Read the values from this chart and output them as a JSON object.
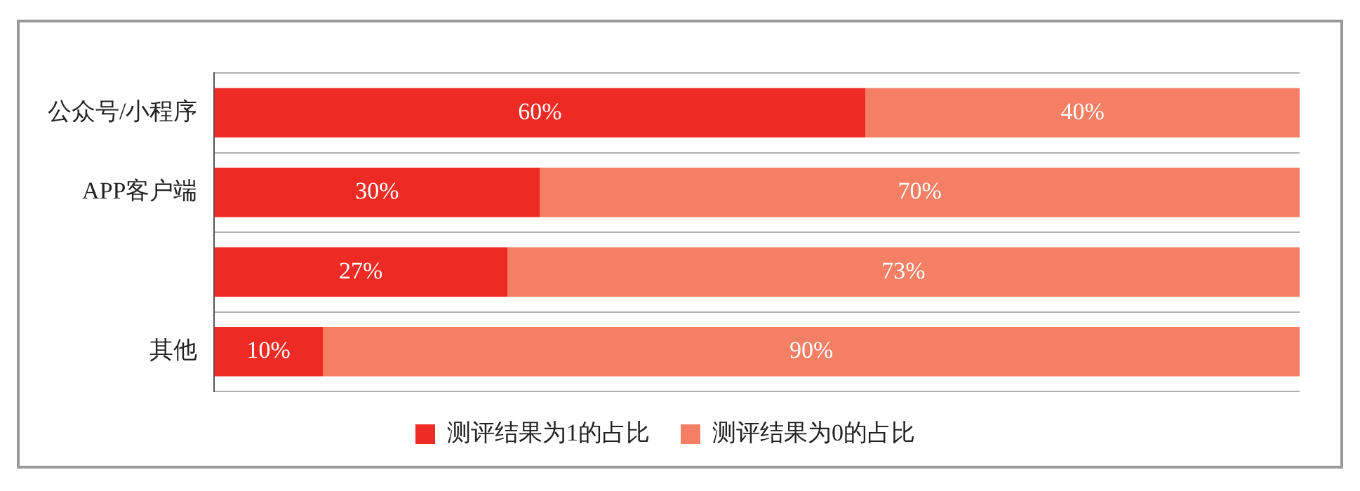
{
  "chart_data": {
    "type": "bar",
    "orientation": "horizontal",
    "stacked": true,
    "categories": [
      "公众号/小程序",
      "APP客户端",
      null,
      "其他"
    ],
    "series": [
      {
        "name": "测评结果为1的占比",
        "color": "#ee2a24",
        "values": [
          60,
          30,
          27,
          10
        ],
        "value_labels": [
          "60%",
          "30%",
          "27%",
          "10%"
        ]
      },
      {
        "name": "测评结果为0的占比",
        "color": "#f47f64",
        "values": [
          40,
          70,
          73,
          90
        ],
        "value_labels": [
          "40%",
          "70%",
          "73%",
          "90%"
        ]
      }
    ],
    "xlim": [
      0,
      100
    ],
    "grid": "y",
    "legend": "bottom",
    "tick_labels": "y"
  }
}
